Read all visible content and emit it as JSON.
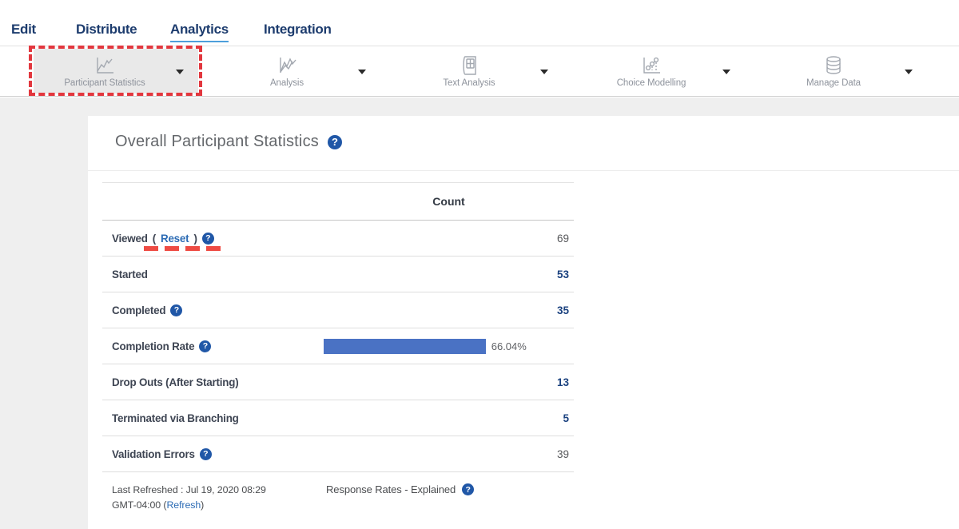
{
  "nav": {
    "items": [
      {
        "label": "Edit",
        "active": false
      },
      {
        "label": "Distribute",
        "active": false
      },
      {
        "label": "Analytics",
        "active": true
      },
      {
        "label": "Integration",
        "active": false
      }
    ]
  },
  "toolbar": {
    "items": [
      {
        "label": "Participant Statistics",
        "icon": "line-chart-icon",
        "selected": true
      },
      {
        "label": "Analysis",
        "icon": "zigzag-chart-icon",
        "selected": false
      },
      {
        "label": "Text Analysis",
        "icon": "journal-grid-icon",
        "selected": false
      },
      {
        "label": "Choice Modelling",
        "icon": "scatter-steps-icon",
        "selected": false
      },
      {
        "label": "Manage Data",
        "icon": "database-icon",
        "selected": false
      }
    ]
  },
  "panel": {
    "title": "Overall Participant Statistics",
    "table": {
      "header": {
        "count": "Count"
      },
      "rows": [
        {
          "label": "Viewed",
          "paren_open": "(",
          "reset_link": "Reset",
          "paren_close": ")",
          "has_help": true,
          "value": "69",
          "emphasis": false
        },
        {
          "label": "Started",
          "value": "53",
          "emphasis": true
        },
        {
          "label": "Completed",
          "has_help": true,
          "value": "35",
          "emphasis": true
        },
        {
          "label": "Completion Rate",
          "has_help": true,
          "bar": {
            "percent": 66.04,
            "label": "66.04%"
          }
        },
        {
          "label": "Drop Outs (After Starting)",
          "value": "13",
          "emphasis": true
        },
        {
          "label": "Terminated via Branching",
          "value": "5",
          "emphasis": true
        },
        {
          "label": "Validation Errors",
          "has_help": true,
          "value": "39",
          "emphasis": false
        }
      ],
      "footer": {
        "last_refreshed_line1": "Last Refreshed : Jul 19, 2020 08:29",
        "last_refreshed_prefix": "GMT-04:00 (",
        "refresh_link": "Refresh",
        "last_refreshed_suffix": ")",
        "response_rates_label": "Response Rates - Explained"
      }
    }
  },
  "colors": {
    "nav_navy": "#1d3c6e",
    "nav_active_underline": "#4d9fdb",
    "annotation_red": "#e2373e",
    "link_blue": "#2d6cb5",
    "help_blue": "#2057a7",
    "value_navy": "#1a417f",
    "bar_blue": "#4a72c4",
    "page_background": "#efefef"
  }
}
